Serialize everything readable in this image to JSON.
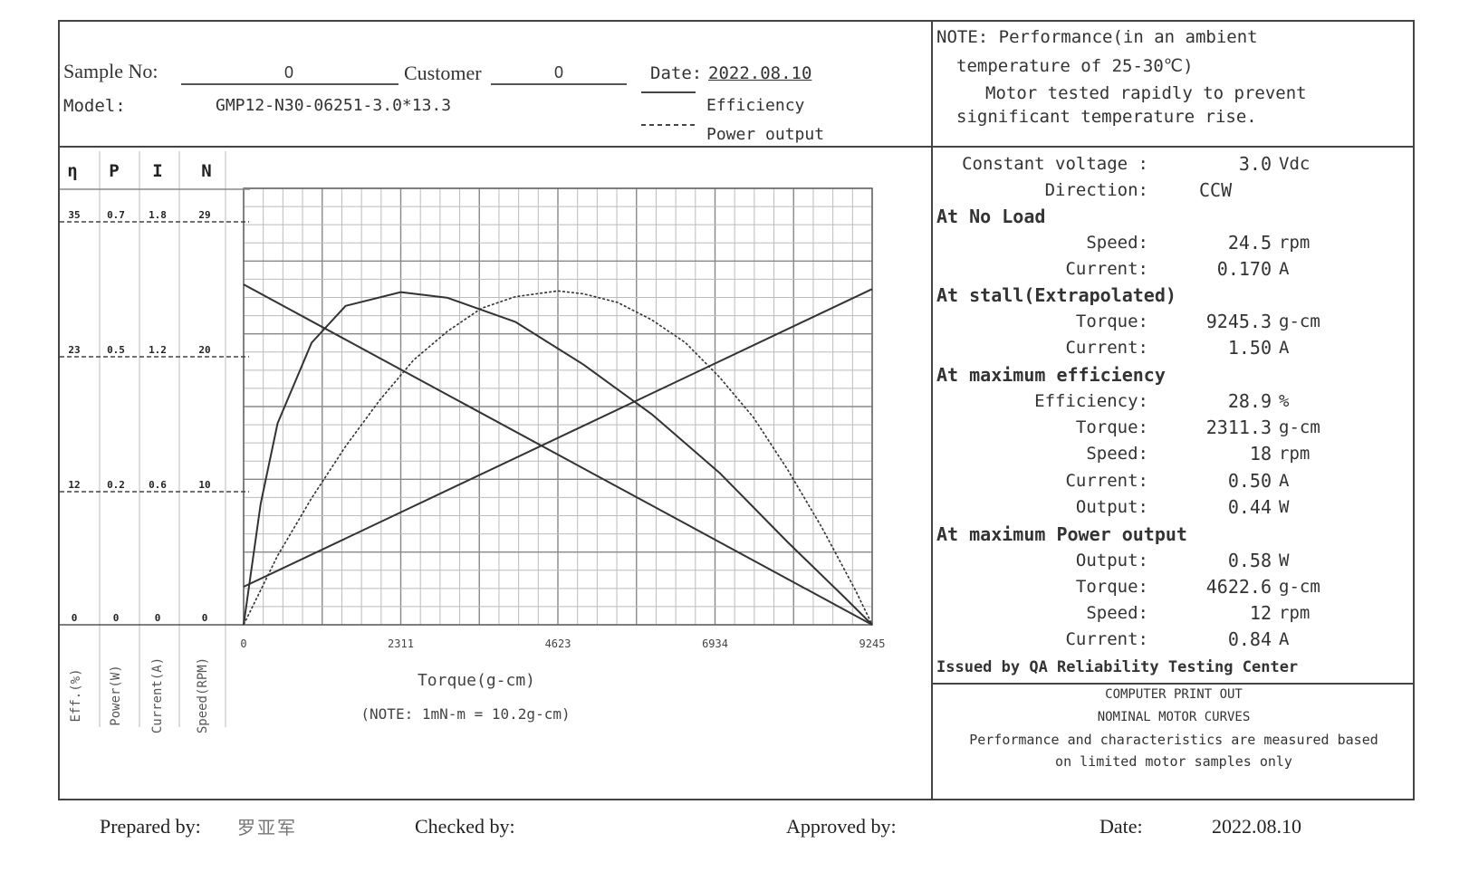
{
  "header": {
    "sample_label": "Sample No:",
    "sample_value": "0",
    "customer_label": "Customer",
    "customer_value": "0",
    "date_label": "Date:",
    "date_value": "2022.08.10",
    "model_label": "Model:",
    "model_value": "GMP12-N30-06251-3.0*13.3",
    "legend_efficiency": "Efficiency",
    "legend_power": "Power output"
  },
  "note": {
    "line1": "NOTE:  Performance(in an ambient",
    "line2": "temperature of 25-30℃)",
    "line3": "Motor tested rapidly to prevent",
    "line4": "significant temperature rise."
  },
  "specs": {
    "constant_voltage": {
      "label": "Constant voltage :",
      "value": "3.0",
      "unit": "Vdc"
    },
    "direction": {
      "label": "Direction:",
      "value": "CCW"
    },
    "no_load_heading": "At No Load",
    "no_load_speed": {
      "label": "Speed:",
      "value": "24.5",
      "unit": "rpm"
    },
    "no_load_current": {
      "label": "Current:",
      "value": "0.170",
      "unit": "A"
    },
    "stall_heading": "At stall(Extrapolated)",
    "stall_torque": {
      "label": "Torque:",
      "value": "9245.3",
      "unit": "g-cm"
    },
    "stall_current": {
      "label": "Current:",
      "value": "1.50",
      "unit": "A"
    },
    "max_eff_heading": "At maximum efficiency",
    "max_eff_eff": {
      "label": "Efficiency:",
      "value": "28.9",
      "unit": "%"
    },
    "max_eff_torque": {
      "label": "Torque:",
      "value": "2311.3",
      "unit": "g-cm"
    },
    "max_eff_speed": {
      "label": "Speed:",
      "value": "18",
      "unit": "rpm"
    },
    "max_eff_current": {
      "label": "Current:",
      "value": "0.50",
      "unit": "A"
    },
    "max_eff_output": {
      "label": "Output:",
      "value": "0.44",
      "unit": "W"
    },
    "max_pow_heading": "At maximum Power output",
    "max_pow_output": {
      "label": "Output:",
      "value": "0.58",
      "unit": "W"
    },
    "max_pow_torque": {
      "label": "Torque:",
      "value": "4622.6",
      "unit": "g-cm"
    },
    "max_pow_speed": {
      "label": "Speed:",
      "value": "12",
      "unit": "rpm"
    },
    "max_pow_current": {
      "label": "Current:",
      "value": "0.84",
      "unit": "A"
    },
    "issued_by": "Issued by QA Reliability Testing Center"
  },
  "computer": {
    "line1": "COMPUTER PRINT OUT",
    "line2": "NOMINAL MOTOR CURVES",
    "line3": "Performance and characteristics are measured based",
    "line4": "on limited motor samples only"
  },
  "footer": {
    "prepared_label": "Prepared by:",
    "prepared_value": "罗亚军",
    "checked_label": "Checked by:",
    "approved_label": "Approved by:",
    "date_label": "Date:",
    "date_value": "2022.08.10"
  },
  "chart_data": {
    "type": "line",
    "xlabel": "Torque(g-cm)",
    "xnote": "(NOTE: 1mN-m = 10.2g-cm)",
    "x_ticks": [
      "0",
      "2311",
      "4623",
      "6934",
      "9245"
    ],
    "xlim": [
      0,
      9245
    ],
    "axis_headers": [
      "η",
      "P",
      "I",
      "N"
    ],
    "axis_titles": [
      "Eff.(%)",
      "Power(W)",
      "Current(A)",
      "Speed(RPM)"
    ],
    "scales": {
      "eff": {
        "ticks": [
          "0",
          "12",
          "23",
          "35"
        ],
        "max": 35
      },
      "power": {
        "ticks": [
          "0",
          "0.2",
          "0.5",
          "0.7"
        ],
        "max": 0.7
      },
      "current": {
        "ticks": [
          "0",
          "0.6",
          "1.2",
          "1.8"
        ],
        "max": 1.8
      },
      "speed": {
        "ticks": [
          "0",
          "10",
          "20",
          "29"
        ],
        "max": 29
      }
    },
    "series": [
      {
        "key": "speed",
        "style": "solid",
        "x": [
          0,
          9245.3
        ],
        "y": [
          24.5,
          0
        ]
      },
      {
        "key": "current",
        "style": "solid",
        "x": [
          0,
          9245.3
        ],
        "y": [
          0.17,
          1.5
        ]
      },
      {
        "key": "eff",
        "style": "solid",
        "x": [
          0,
          250,
          500,
          1000,
          1500,
          2311,
          3000,
          4000,
          5000,
          6000,
          7000,
          8000,
          8800,
          9245
        ],
        "y": [
          0,
          10.5,
          17.5,
          24.5,
          27.7,
          28.9,
          28.4,
          26.3,
          22.6,
          18.3,
          13.2,
          7.2,
          2.6,
          0
        ]
      },
      {
        "key": "power",
        "style": "dashed",
        "x": [
          0,
          500,
          1000,
          1500,
          2000,
          2500,
          3000,
          3500,
          4000,
          4623,
          5000,
          5500,
          6000,
          6500,
          7000,
          7500,
          8000,
          8500,
          9000,
          9245
        ],
        "y": [
          0,
          0.12,
          0.22,
          0.31,
          0.39,
          0.46,
          0.51,
          0.55,
          0.57,
          0.58,
          0.575,
          0.56,
          0.53,
          0.49,
          0.43,
          0.36,
          0.27,
          0.17,
          0.06,
          0
        ]
      }
    ]
  }
}
